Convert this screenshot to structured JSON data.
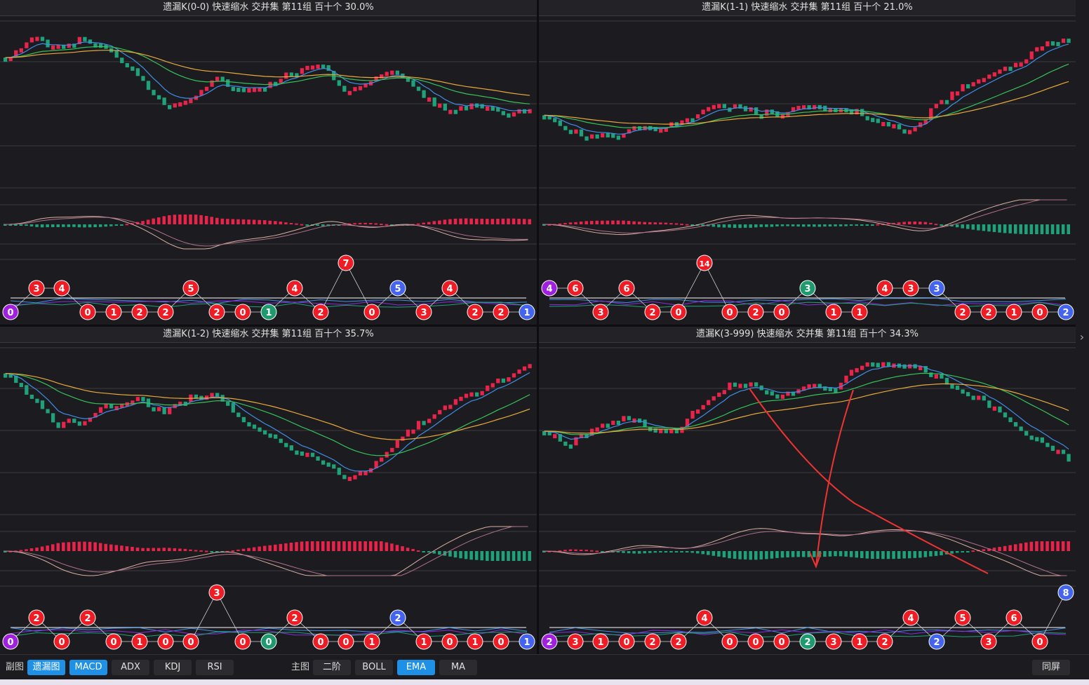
{
  "panels": [
    {
      "id": "p0",
      "title": "遗漏K(0-0)  快速缩水  交并集 第11组  百十个  30.0%",
      "badges": [
        "0",
        "3",
        "4",
        "0",
        "1",
        "2",
        "2",
        "5",
        "2",
        "0",
        "1",
        "4",
        "2",
        "7",
        "0",
        "5",
        "3",
        "4",
        "2",
        "2",
        "1"
      ]
    },
    {
      "id": "p1",
      "title": "遗漏K(1-1)  快速缩水  交并集 第11组  百十个  21.0%",
      "badges": [
        "4",
        "6",
        "3",
        "6",
        "2",
        "0",
        "14",
        "0",
        "2",
        "0",
        "3",
        "1",
        "1",
        "4",
        "3",
        "3",
        "2",
        "2",
        "1",
        "0",
        "2"
      ]
    },
    {
      "id": "p2",
      "title": "遗漏K(1-2)  快速缩水  交并集 第11组  百十个  35.7%",
      "badges": [
        "0",
        "2",
        "0",
        "2",
        "0",
        "1",
        "0",
        "0",
        "3",
        "0",
        "0",
        "2",
        "0",
        "0",
        "1",
        "2",
        "1",
        "0",
        "1",
        "0",
        "1"
      ]
    },
    {
      "id": "p3",
      "title": "遗漏K(3-999)  快速缩水  交并集 第11组  百十个  34.3%",
      "badges": [
        "2",
        "3",
        "1",
        "0",
        "2",
        "2",
        "4",
        "0",
        "0",
        "0",
        "2",
        "3",
        "1",
        "2",
        "4",
        "2",
        "5",
        "3",
        "6",
        "0",
        "8"
      ]
    }
  ],
  "toolbar": {
    "sub_label": "副图",
    "sub_buttons": [
      {
        "label": "遗漏图",
        "active": true
      },
      {
        "label": "MACD",
        "active": true
      },
      {
        "label": "ADX",
        "active": false
      },
      {
        "label": "KDJ",
        "active": false
      },
      {
        "label": "RSI",
        "active": false
      }
    ],
    "main_label": "主图",
    "main_buttons": [
      {
        "label": "二阶",
        "active": false
      },
      {
        "label": "BOLL",
        "active": false
      },
      {
        "label": "EMA",
        "active": true
      },
      {
        "label": "MA",
        "active": false
      }
    ],
    "fullscreen_label": "同屏"
  },
  "scroll_arrow_icon": "chevron-right-icon",
  "colors": {
    "up": "#e8244a",
    "down": "#1fa27a",
    "ema_fast": "#3f8ee8",
    "ema_mid": "#36c25a",
    "ema_slow": "#e8a93a",
    "badge_red": "#ee1c25",
    "badge_blue": "#4463ee",
    "badge_green": "#1f9a6e",
    "badge_purple": "#a020e0",
    "annotation": "#e33"
  }
}
